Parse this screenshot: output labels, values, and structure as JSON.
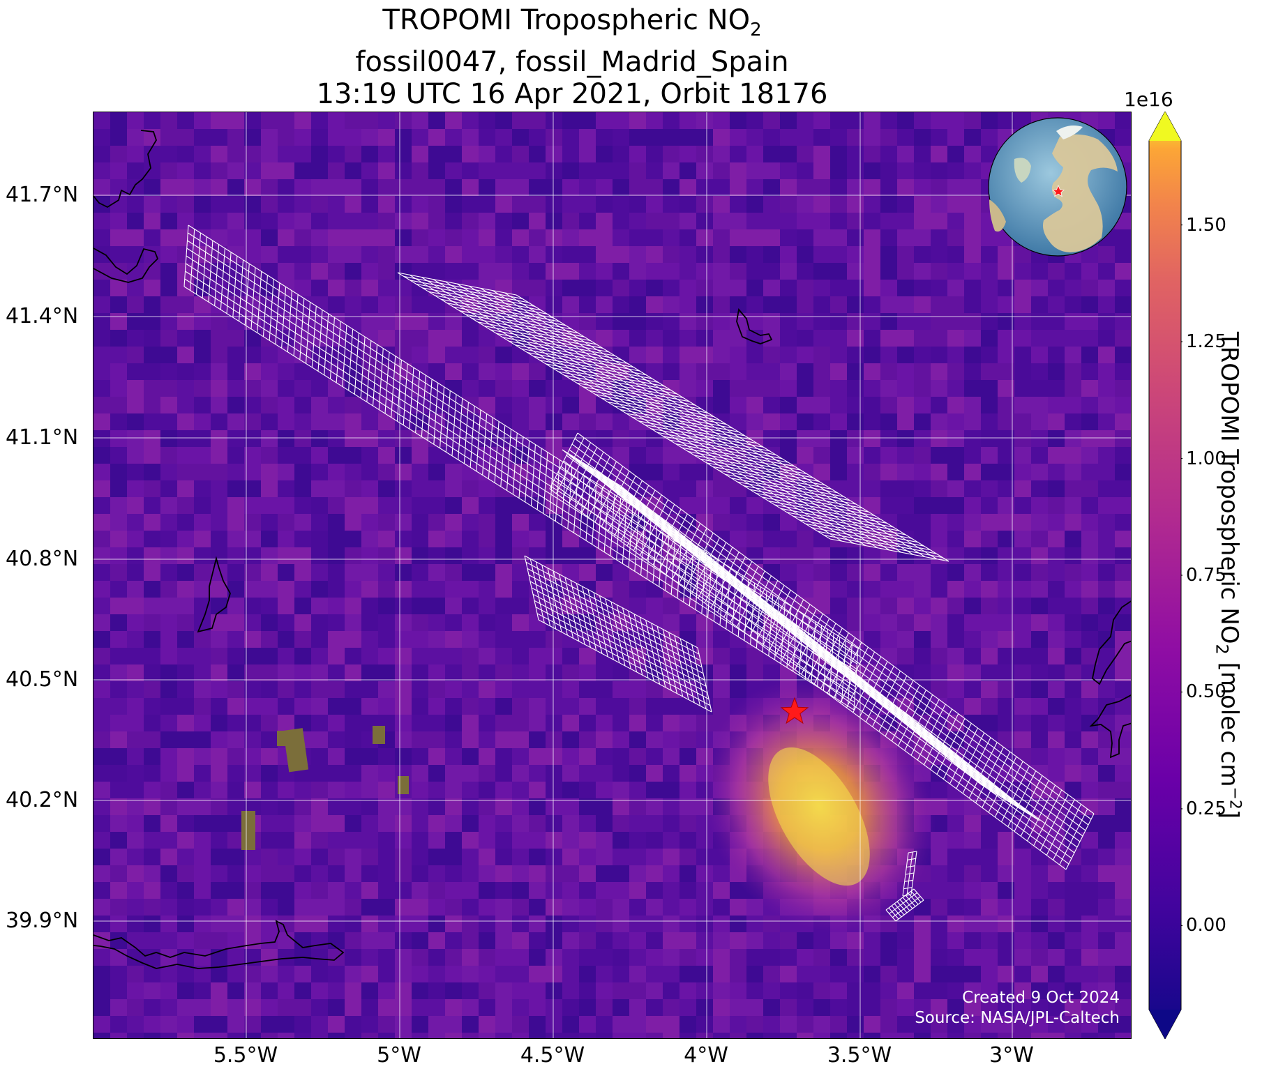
{
  "title": {
    "line1_prefix": "TROPOMI Tropospheric NO",
    "line1_sub": "2",
    "line2": "fossil0047, fossil_Madrid_Spain",
    "line3": "13:19 UTC 16 Apr 2021, Orbit 18176"
  },
  "axes": {
    "lat_ticks": [
      "41.7°N",
      "41.4°N",
      "41.1°N",
      "40.8°N",
      "40.5°N",
      "40.2°N",
      "39.9°N"
    ],
    "lon_ticks": [
      "5.5°W",
      "5°W",
      "4.5°W",
      "4°W",
      "3.5°W",
      "3°W"
    ],
    "grid": true
  },
  "colorbar": {
    "exponent": "1e16",
    "tick_labels": [
      "1.50",
      "1.25",
      "1.00",
      "0.75",
      "0.50",
      "0.25",
      "0.00"
    ],
    "ticks": [
      1.5,
      1.25,
      1.0,
      0.75,
      0.5,
      0.25,
      0.0
    ],
    "range": [
      -0.18,
      1.68
    ],
    "extend": "both",
    "colormap": "plasma",
    "label_prefix": "TROPOMI Tropospheric NO",
    "label_sub": "2",
    "label_units": " [molec cm",
    "label_sup": "−2",
    "label_end": "]"
  },
  "map": {
    "site_marker": "red-star",
    "site_color": "#ff1a1a",
    "overlay_color": "#ffffff",
    "coastline_color": "#000000",
    "inset": "globe-europe-africa"
  },
  "credits": {
    "created": "Created 9 Oct 2024",
    "source": "Source: NASA/JPL-Caltech"
  }
}
